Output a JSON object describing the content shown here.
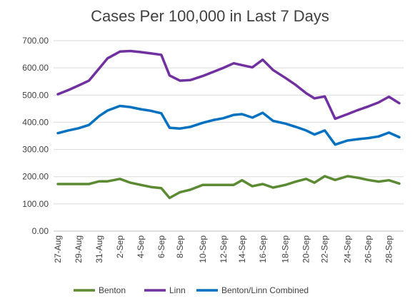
{
  "chart_data": {
    "type": "line",
    "title": "Cases Per 100,000 in Last 7 Days",
    "xlabel": "",
    "ylabel": "",
    "ylim": [
      0,
      700
    ],
    "yticks": [
      "0.00",
      "100.00",
      "200.00",
      "300.00",
      "400.00",
      "500.00",
      "600.00",
      "700.00"
    ],
    "grid": true,
    "legend_position": "bottom",
    "categories": [
      "27-Aug",
      "28-Aug",
      "29-Aug",
      "30-Aug",
      "31-Aug",
      "1-Sep",
      "2-Sep",
      "3-Sep",
      "4-Sep",
      "5-Sep",
      "6-Sep",
      "7-Sep",
      "8-Sep",
      "9-Sep",
      "10-Sep",
      "11-Sep",
      "12-Sep",
      "13-Sep",
      "14-Sep",
      "15-Sep",
      "16-Sep",
      "17-Sep",
      "18-Sep",
      "19-Sep",
      "20-Sep",
      "21-Sep",
      "22-Sep",
      "23-Sep",
      "24-Sep",
      "25-Sep",
      "26-Sep",
      "27-Sep",
      "28-Sep",
      "29-Sep"
    ],
    "tick_labels": [
      "27-Aug",
      "29-Aug",
      "31-Aug",
      "2-Sep",
      "4-Sep",
      "6-Sep",
      "8-Sep",
      "10-Sep",
      "12-Sep",
      "14-Sep",
      "16-Sep",
      "18-Sep",
      "20-Sep",
      "22-Sep",
      "24-Sep",
      "26-Sep",
      "28-Sep"
    ],
    "x_positions": [
      0,
      1,
      2,
      3,
      4,
      4.8,
      6,
      7,
      8,
      9,
      10,
      10.8,
      11.8,
      12.8,
      14,
      15,
      16,
      17,
      17.8,
      18.8,
      19.8,
      20.8,
      22,
      23,
      24,
      24.8,
      25.8,
      26.8,
      28,
      29,
      30,
      31,
      32,
      33
    ],
    "series": [
      {
        "name": "Benton",
        "color": "#5b8a32",
        "values": [
          173,
          173,
          173,
          173,
          183,
          183,
          192,
          178,
          170,
          162,
          158,
          122,
          143,
          152,
          170,
          170,
          170,
          170,
          187,
          165,
          173,
          160,
          170,
          182,
          192,
          178,
          202,
          188,
          202,
          196,
          188,
          182,
          187,
          175
        ]
      },
      {
        "name": "Linn",
        "color": "#7030a0",
        "values": [
          503,
          518,
          535,
          553,
          598,
          635,
          660,
          662,
          658,
          653,
          648,
          572,
          553,
          555,
          570,
          585,
          600,
          617,
          610,
          602,
          630,
          592,
          563,
          537,
          507,
          488,
          495,
          413,
          430,
          445,
          458,
          473,
          494,
          470
        ]
      },
      {
        "name": "Benton/Linn Combined",
        "color": "#0070c0",
        "values": [
          360,
          370,
          378,
          390,
          423,
          443,
          460,
          456,
          448,
          442,
          433,
          380,
          377,
          383,
          398,
          408,
          415,
          427,
          430,
          417,
          435,
          405,
          395,
          383,
          370,
          355,
          370,
          318,
          333,
          338,
          342,
          348,
          362,
          345
        ]
      }
    ]
  }
}
